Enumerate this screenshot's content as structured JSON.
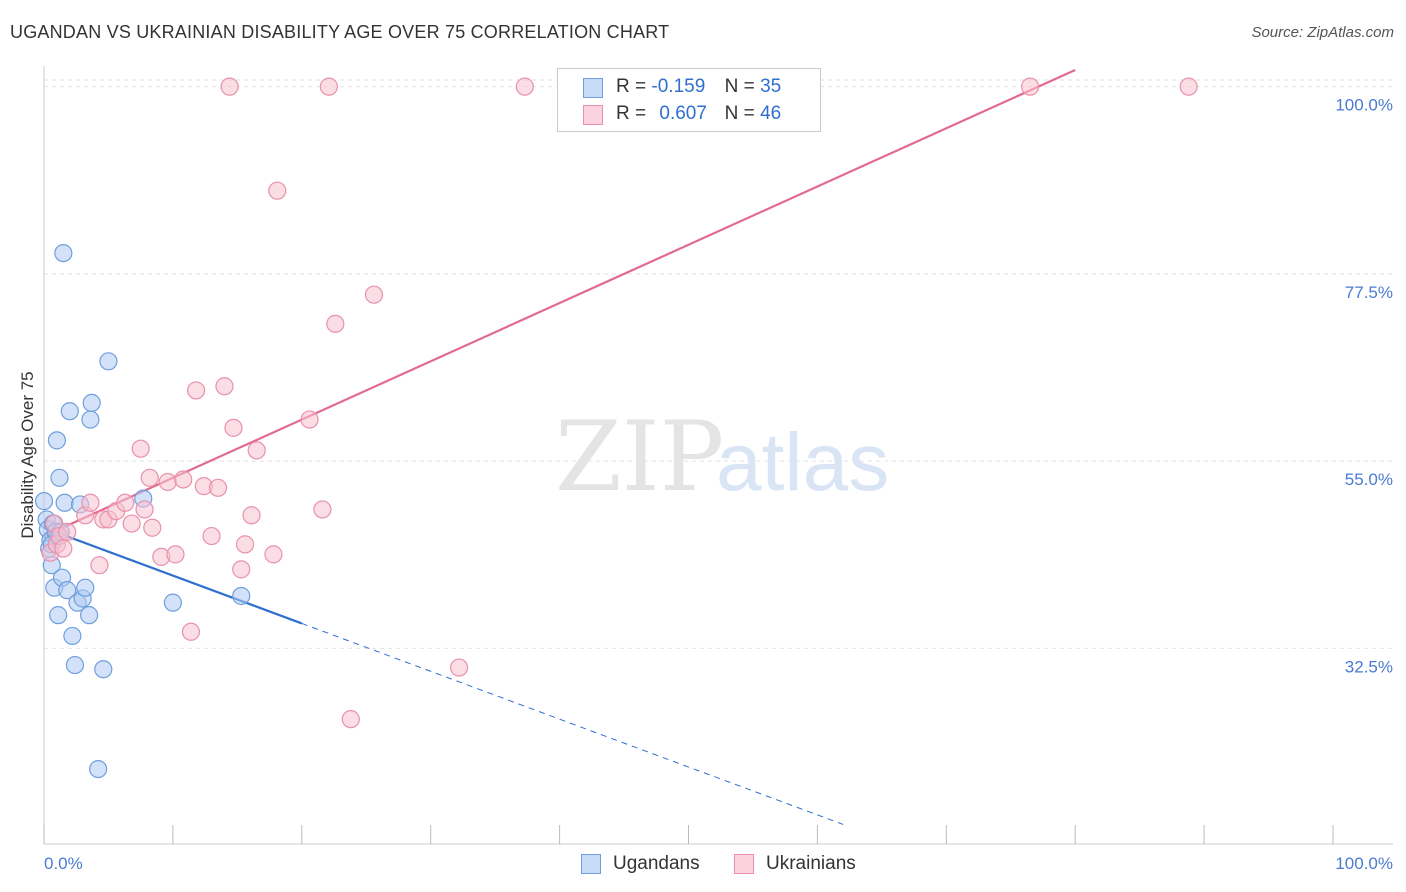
{
  "title": "UGANDAN VS UKRAINIAN DISABILITY AGE OVER 75 CORRELATION CHART",
  "source": "Source: ZipAtlas.com",
  "watermark": {
    "zip": "ZIP",
    "atlas": "atlas"
  },
  "colors": {
    "ugandans_fill": "#aecbf2",
    "ugandans_stroke": "#6f9fdd",
    "ugandans_line": "#2f6fce",
    "ukrainians_fill": "#f7c1d1",
    "ukrainians_stroke": "#e891ab",
    "ukrainians_line": "#e26a90",
    "axis_label": "#4a7bd0",
    "grid": "#e2e2e2"
  },
  "legend": {
    "r_label": "R =",
    "n_label": "N =",
    "rows": [
      {
        "r": "-0.159",
        "n": "35"
      },
      {
        "r": "0.607",
        "n": "46"
      }
    ]
  },
  "chart_data": {
    "type": "scatter",
    "title": "UGANDAN VS UKRAINIAN DISABILITY AGE OVER 75 CORRELATION CHART",
    "xlabel": "",
    "ylabel": "Disability Age Over 75",
    "xlim": [
      0,
      100
    ],
    "ylim": [
      9,
      102
    ],
    "x_tick_labels": [
      "0.0%",
      "100.0%"
    ],
    "y_ticks": [
      32.5,
      55.0,
      77.5,
      100.0
    ],
    "y_tick_labels": [
      "32.5%",
      "55.0%",
      "77.5%",
      "100.0%"
    ],
    "series": [
      {
        "name": "Ugandans",
        "r": -0.159,
        "n": 35,
        "points": [
          [
            0.0,
            50.2
          ],
          [
            0.2,
            48.0
          ],
          [
            0.3,
            46.8
          ],
          [
            0.5,
            45.5
          ],
          [
            0.4,
            44.5
          ],
          [
            0.6,
            42.5
          ],
          [
            0.7,
            47.5
          ],
          [
            0.8,
            39.8
          ],
          [
            1.0,
            46.0
          ],
          [
            1.1,
            36.5
          ],
          [
            1.2,
            53.0
          ],
          [
            1.4,
            41.0
          ],
          [
            1.6,
            50.0
          ],
          [
            1.8,
            39.5
          ],
          [
            2.0,
            61.0
          ],
          [
            2.2,
            34.0
          ],
          [
            2.4,
            30.5
          ],
          [
            2.6,
            38.0
          ],
          [
            2.8,
            49.8
          ],
          [
            3.0,
            38.5
          ],
          [
            3.2,
            39.8
          ],
          [
            3.5,
            36.5
          ],
          [
            3.6,
            60.0
          ],
          [
            3.7,
            62.0
          ],
          [
            4.2,
            18.0
          ],
          [
            4.6,
            30.0
          ],
          [
            5.0,
            67.0
          ],
          [
            7.7,
            50.5
          ],
          [
            10.0,
            38.0
          ],
          [
            15.3,
            38.8
          ],
          [
            1.0,
            57.5
          ],
          [
            1.5,
            80.0
          ],
          [
            0.9,
            46.5
          ],
          [
            0.6,
            45.0
          ],
          [
            1.3,
            46.5
          ]
        ],
        "trend": {
          "x_start": 0,
          "y_start": 47.0,
          "x_end": 20,
          "y_end": 35.5,
          "dash_to_x": 62
        }
      },
      {
        "name": "Ukrainians",
        "r": 0.607,
        "n": 46,
        "points": [
          [
            0.5,
            44.0
          ],
          [
            0.8,
            47.5
          ],
          [
            1.0,
            45.0
          ],
          [
            1.2,
            46.0
          ],
          [
            1.5,
            44.5
          ],
          [
            1.8,
            46.5
          ],
          [
            3.2,
            48.5
          ],
          [
            3.6,
            50.0
          ],
          [
            4.3,
            42.5
          ],
          [
            4.6,
            48.0
          ],
          [
            5.0,
            48.0
          ],
          [
            5.6,
            49.0
          ],
          [
            6.3,
            50.0
          ],
          [
            6.8,
            47.5
          ],
          [
            7.5,
            56.5
          ],
          [
            7.8,
            49.2
          ],
          [
            8.2,
            53.0
          ],
          [
            8.4,
            47.0
          ],
          [
            9.1,
            43.5
          ],
          [
            9.6,
            52.5
          ],
          [
            10.2,
            43.8
          ],
          [
            10.8,
            52.8
          ],
          [
            11.4,
            34.5
          ],
          [
            11.8,
            63.5
          ],
          [
            12.4,
            52.0
          ],
          [
            13.0,
            46.0
          ],
          [
            13.5,
            51.8
          ],
          [
            14.0,
            64.0
          ],
          [
            14.4,
            100.0
          ],
          [
            14.7,
            59.0
          ],
          [
            15.3,
            42.0
          ],
          [
            15.6,
            45.0
          ],
          [
            16.1,
            48.5
          ],
          [
            16.5,
            56.3
          ],
          [
            17.8,
            43.8
          ],
          [
            18.1,
            87.5
          ],
          [
            20.6,
            60.0
          ],
          [
            21.6,
            49.2
          ],
          [
            22.1,
            100.0
          ],
          [
            22.6,
            71.5
          ],
          [
            23.8,
            24.0
          ],
          [
            25.6,
            75.0
          ],
          [
            32.2,
            30.2
          ],
          [
            37.3,
            100.0
          ],
          [
            76.5,
            100.0
          ],
          [
            88.8,
            100.0
          ]
        ],
        "trend": {
          "x_start": 0,
          "y_start": 46.0,
          "x_end": 80,
          "y_end": 102.0
        }
      }
    ]
  },
  "bottom_legend": [
    {
      "label": "Ugandans"
    },
    {
      "label": "Ukrainians"
    }
  ]
}
